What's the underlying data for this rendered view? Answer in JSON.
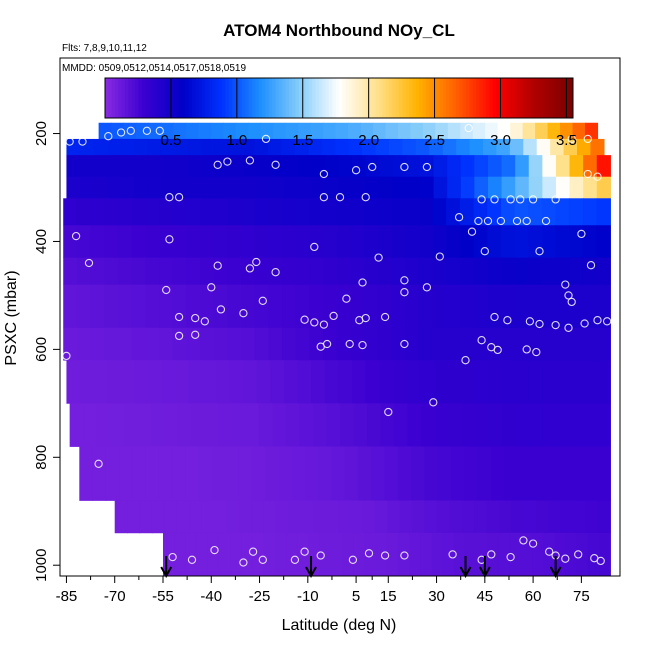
{
  "chart_data": {
    "type": "heatmap",
    "title": "ATOM4 Northbound NOy_CL",
    "flights_note": "Flts: 7,8,9,10,11,12",
    "dates_note": "MMDD: 0509,0512,0514,0517,0518,0519",
    "xlabel": "Latitude (deg N)",
    "ylabel": "PSXC (mbar)",
    "xlim": [
      -87,
      87
    ],
    "ylim": [
      1020,
      60
    ],
    "x_ticks": [
      -85,
      -70,
      -55,
      -40,
      -25,
      -10,
      5,
      15,
      30,
      45,
      60,
      75
    ],
    "y_ticks": [
      200,
      400,
      600,
      800,
      1000
    ],
    "colorbar": {
      "ticks": [
        0.5,
        1.0,
        1.5,
        2.0,
        2.5,
        3.0,
        3.5
      ],
      "tick_labels": [
        "0.5",
        "1.0",
        "1.5",
        "2.0",
        "2.5",
        "3.0",
        "3.5"
      ],
      "range": [
        0,
        3.55
      ],
      "colors": [
        "#8a2be2",
        "#3a00d0",
        "#0000c8",
        "#0032ff",
        "#1e90ff",
        "#87cefa",
        "#ffffff",
        "#ffe08a",
        "#ffb300",
        "#ff6000",
        "#ff0000",
        "#b00000",
        "#7a0000"
      ]
    },
    "bands": [
      {
        "p": [
          180,
          210
        ],
        "x": [
          -75,
          80
        ],
        "v": [
          1.0,
          1.1,
          1.2,
          1.3,
          1.5,
          1.8,
          2.8
        ]
      },
      {
        "p": [
          210,
          240
        ],
        "x": [
          -85,
          82
        ],
        "v": [
          0.8,
          0.75,
          0.7,
          0.85,
          1.0,
          1.3,
          2.6
        ]
      },
      {
        "p": [
          240,
          280
        ],
        "x": [
          -85,
          84
        ],
        "v": [
          0.5,
          0.5,
          0.55,
          0.6,
          0.7,
          1.1,
          2.9
        ]
      },
      {
        "p": [
          280,
          320
        ],
        "x": [
          -85,
          84
        ],
        "v": [
          0.45,
          0.5,
          0.5,
          0.55,
          0.6,
          1.3,
          2.2
        ]
      },
      {
        "p": [
          320,
          370
        ],
        "x": [
          -86,
          84
        ],
        "v": [
          0.35,
          0.4,
          0.45,
          0.5,
          0.55,
          1.0,
          0.9
        ]
      },
      {
        "p": [
          370,
          430
        ],
        "x": [
          -86,
          84
        ],
        "v": [
          0.25,
          0.3,
          0.35,
          0.4,
          0.5,
          0.7,
          0.6
        ]
      },
      {
        "p": [
          430,
          480
        ],
        "x": [
          -86,
          84
        ],
        "v": [
          0.2,
          0.25,
          0.3,
          0.35,
          0.45,
          0.55,
          0.5
        ]
      },
      {
        "p": [
          480,
          560
        ],
        "x": [
          -86,
          84
        ],
        "v": [
          0.15,
          0.2,
          0.25,
          0.3,
          0.4,
          0.45,
          0.45
        ]
      },
      {
        "p": [
          560,
          620
        ],
        "x": [
          -86,
          84
        ],
        "v": [
          0.12,
          0.15,
          0.2,
          0.3,
          0.4,
          0.4,
          0.4
        ]
      },
      {
        "p": [
          620,
          700
        ],
        "x": [
          -85,
          84
        ],
        "v": [
          0.1,
          0.12,
          0.15,
          0.25,
          0.35,
          0.38,
          0.38
        ]
      },
      {
        "p": [
          700,
          780
        ],
        "x": [
          -84,
          84
        ],
        "v": [
          0.08,
          0.1,
          0.12,
          0.2,
          0.3,
          0.35,
          0.35
        ]
      },
      {
        "p": [
          780,
          880
        ],
        "x": [
          -81,
          84
        ],
        "v": [
          0.08,
          0.08,
          0.1,
          0.15,
          0.25,
          0.3,
          0.3
        ]
      },
      {
        "p": [
          880,
          940
        ],
        "x": [
          -70,
          84
        ],
        "v": [
          0.08,
          0.08,
          0.1,
          0.12,
          0.2,
          0.25,
          0.28
        ]
      },
      {
        "p": [
          940,
          1020
        ],
        "x": [
          -55,
          84
        ],
        "v": [
          0.08,
          0.08,
          0.1,
          0.12,
          0.18,
          0.2,
          0.25
        ]
      }
    ],
    "points": [
      [
        -84,
        215
      ],
      [
        -80,
        215
      ],
      [
        -72,
        205
      ],
      [
        -68,
        198
      ],
      [
        -65,
        195
      ],
      [
        -60,
        195
      ],
      [
        -56,
        195
      ],
      [
        -23,
        210
      ],
      [
        40,
        190
      ],
      [
        72,
        210
      ],
      [
        77,
        210
      ],
      [
        -38,
        258
      ],
      [
        -35,
        252
      ],
      [
        -28,
        250
      ],
      [
        -20,
        258
      ],
      [
        -5,
        275
      ],
      [
        5,
        268
      ],
      [
        10,
        262
      ],
      [
        20,
        262
      ],
      [
        27,
        262
      ],
      [
        77,
        275
      ],
      [
        80,
        280
      ],
      [
        -53,
        318
      ],
      [
        -50,
        318
      ],
      [
        -5,
        318
      ],
      [
        0,
        318
      ],
      [
        8,
        318
      ],
      [
        44,
        322
      ],
      [
        48,
        322
      ],
      [
        53,
        322
      ],
      [
        56,
        322
      ],
      [
        60,
        322
      ],
      [
        67,
        322
      ],
      [
        37,
        355
      ],
      [
        43,
        362
      ],
      [
        46,
        362
      ],
      [
        50,
        362
      ],
      [
        55,
        362
      ],
      [
        58,
        362
      ],
      [
        64,
        362
      ],
      [
        -82,
        390
      ],
      [
        -53,
        396
      ],
      [
        -8,
        410
      ],
      [
        31,
        428
      ],
      [
        41,
        382
      ],
      [
        45,
        418
      ],
      [
        62,
        418
      ],
      [
        75,
        386
      ],
      [
        -78,
        440
      ],
      [
        -38,
        445
      ],
      [
        -28,
        450
      ],
      [
        -26,
        438
      ],
      [
        -20,
        457
      ],
      [
        12,
        430
      ],
      [
        20,
        472
      ],
      [
        27,
        485
      ],
      [
        -54,
        490
      ],
      [
        -40,
        485
      ],
      [
        7,
        476
      ],
      [
        -24,
        510
      ],
      [
        2,
        506
      ],
      [
        20,
        494
      ],
      [
        70,
        480
      ],
      [
        71,
        500
      ],
      [
        72,
        512
      ],
      [
        78,
        444
      ],
      [
        -50,
        540
      ],
      [
        -45,
        542
      ],
      [
        -42,
        548
      ],
      [
        -37,
        526
      ],
      [
        -30,
        533
      ],
      [
        -11,
        545
      ],
      [
        -8,
        550
      ],
      [
        -5,
        554
      ],
      [
        6,
        546
      ],
      [
        -2,
        538
      ],
      [
        8,
        542
      ],
      [
        14,
        540
      ],
      [
        48,
        540
      ],
      [
        52,
        546
      ],
      [
        59,
        548
      ],
      [
        62,
        553
      ],
      [
        67,
        555
      ],
      [
        71,
        560
      ],
      [
        76,
        552
      ],
      [
        80,
        546
      ],
      [
        83,
        548
      ],
      [
        -50,
        575
      ],
      [
        -45,
        573
      ],
      [
        -4,
        590
      ],
      [
        -6,
        595
      ],
      [
        3,
        590
      ],
      [
        7,
        592
      ],
      [
        44,
        583
      ],
      [
        47,
        596
      ],
      [
        49,
        601
      ],
      [
        58,
        600
      ],
      [
        61,
        605
      ],
      [
        39,
        620
      ],
      [
        -85,
        612
      ],
      [
        20,
        590
      ],
      [
        29,
        698
      ],
      [
        15,
        716
      ],
      [
        -75,
        812
      ],
      [
        -58,
        950
      ],
      [
        -39,
        972
      ],
      [
        -27,
        975
      ],
      [
        -11,
        975
      ],
      [
        -6,
        982
      ],
      [
        9,
        978
      ],
      [
        14,
        982
      ],
      [
        20,
        982
      ],
      [
        35,
        980
      ],
      [
        57,
        954
      ],
      [
        60,
        960
      ],
      [
        65,
        975
      ],
      [
        67,
        982
      ],
      [
        70,
        988
      ],
      [
        74,
        980
      ],
      [
        79,
        987
      ],
      [
        81,
        992
      ],
      [
        44,
        990
      ],
      [
        47,
        980
      ],
      [
        53,
        985
      ],
      [
        -52,
        985
      ],
      [
        -46,
        990
      ],
      [
        -30,
        995
      ],
      [
        -24,
        990
      ],
      [
        -14,
        990
      ],
      [
        4,
        990
      ]
    ],
    "arrows_lat": [
      -54,
      -9,
      39,
      45,
      67
    ]
  }
}
